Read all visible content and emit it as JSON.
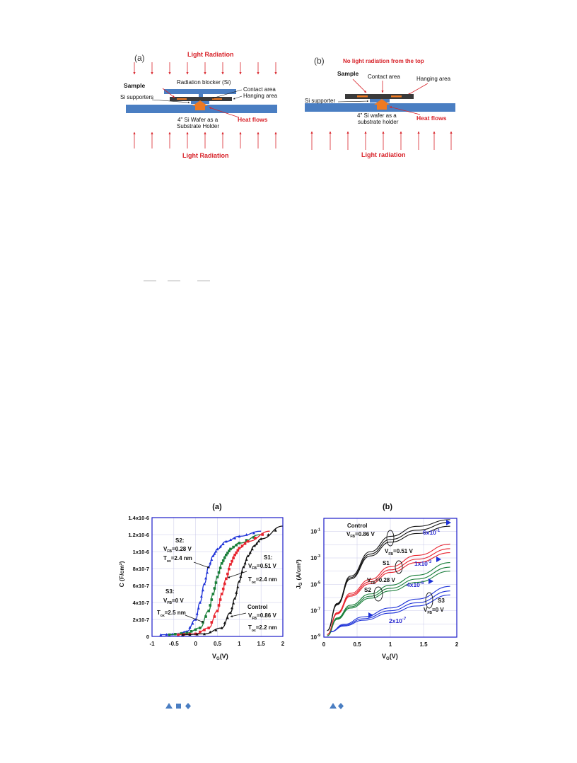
{
  "fig1": {
    "a": {
      "panel": "(a)",
      "light_top": "Light Radiation",
      "light_bottom": "Light Radiation",
      "sample": "Sample",
      "blocker": "Radiation blocker (Si)",
      "contact": "Contact area",
      "hanging": "Hanging area",
      "supporters": "Si supporters",
      "wafer1": "4\" Si Wafer as a",
      "wafer2": "Substrate Holder",
      "heat": "Heat flows"
    },
    "b": {
      "panel": "(b)",
      "no_light": "No light radiation from the top",
      "sample": "Sample",
      "contact": "Contact area",
      "hanging": "Hanging area",
      "supporter": "Si supporter",
      "wafer1": "4\" Si wafer as a",
      "wafer2": "substrate holder",
      "heat": "Heat flows",
      "light_bottom": "Light radiation"
    }
  },
  "colors": {
    "red": "#d8232a",
    "blue_bar": "#4a7ec2",
    "dark": "#3a3a3a",
    "orange": "#ee7a22",
    "plot_frame": "#1c1cc8",
    "black_series": "#111111",
    "red_series": "#e8242f",
    "green_series": "#1a7f3a",
    "blue_series": "#1e32d8",
    "label_blue": "#2a2ad0"
  },
  "chart_data": [
    {
      "type": "line",
      "panel_title": "(a)",
      "xlabel_main": "V",
      "xlabel_sub": "G",
      "xlabel_end": "(V)",
      "ylabel": "C (F/cm²)",
      "xlim": [
        -1,
        2
      ],
      "ylim": [
        0,
        1.4e-06
      ],
      "x_ticks": [
        "-1",
        "-0.5",
        "0",
        "0.5",
        "1",
        "1.5",
        "2"
      ],
      "y_ticks": [
        "0",
        "2x10-7",
        "4x10-7",
        "6x10-7",
        "8x10-7",
        "1x10-6",
        "1.2x10-6",
        "1.4x10-6"
      ],
      "series": [
        {
          "name": "S2",
          "color": "blue",
          "x": [
            -0.8,
            -0.4,
            -0.2,
            0,
            0.1,
            0.2,
            0.3,
            0.4,
            0.5,
            0.7,
            1.0,
            1.5
          ],
          "y": [
            2e-08,
            3e-08,
            6e-08,
            2e-07,
            4e-07,
            6.2e-07,
            8.2e-07,
            9.5e-07,
            1.03e-06,
            1.12e-06,
            1.18e-06,
            1.24e-06
          ]
        },
        {
          "name": "S3",
          "color": "green",
          "x": [
            -0.6,
            -0.2,
            0.1,
            0.3,
            0.4,
            0.5,
            0.6,
            0.7,
            0.8,
            1.0,
            1.5
          ],
          "y": [
            2e-08,
            4e-08,
            1e-07,
            3e-07,
            5e-07,
            7e-07,
            8.6e-07,
            9.6e-07,
            1.03e-06,
            1.1e-06,
            1.2e-06
          ]
        },
        {
          "name": "S1",
          "color": "red",
          "x": [
            -0.4,
            0,
            0.3,
            0.5,
            0.6,
            0.7,
            0.8,
            0.9,
            1.0,
            1.2,
            1.7
          ],
          "y": [
            2e-08,
            3e-08,
            1e-07,
            3e-07,
            5e-07,
            6.8e-07,
            8.5e-07,
            9.6e-07,
            1.04e-06,
            1.12e-06,
            1.24e-06
          ]
        },
        {
          "name": "Control",
          "color": "black",
          "x": [
            -0.3,
            0.2,
            0.6,
            0.8,
            0.9,
            1.0,
            1.1,
            1.2,
            1.35,
            1.5,
            2.0
          ],
          "y": [
            2e-08,
            3e-08,
            1e-07,
            2.8e-07,
            4.5e-07,
            6.5e-07,
            8.2e-07,
            9.5e-07,
            1.07e-06,
            1.15e-06,
            1.3e-06
          ]
        }
      ],
      "annotations": {
        "s2": [
          "S2:",
          "V",
          "FB",
          "=0.28 V",
          "T",
          "ox",
          "=2.4 nm"
        ],
        "s3": [
          "S3:",
          "V",
          "FB",
          "=0 V",
          "T",
          "ox",
          "=2.5 nm"
        ],
        "s1": [
          "S1:",
          "V",
          "FB",
          "=0.51 V",
          "T",
          "ox",
          "=2.4 nm"
        ],
        "control": [
          "Control",
          "V",
          "FB",
          "=0.86 V",
          "T",
          "ox",
          "=2.2 nm"
        ]
      }
    },
    {
      "type": "line",
      "panel_title": "(b)",
      "xlabel_main": "V",
      "xlabel_sub": "G",
      "xlabel_end": "(V)",
      "ylabel_main": "J",
      "ylabel_sub": "G",
      "ylabel_end": "(A/cm²)",
      "log_y": true,
      "xlim": [
        0,
        2
      ],
      "ylim": [
        1e-09,
        1
      ],
      "x_ticks": [
        "0",
        "0.5",
        "1",
        "1.5",
        "2"
      ],
      "y_ticks_exp": [
        "-1",
        "-3",
        "-5",
        "-7",
        "-9"
      ],
      "series": [
        {
          "name": "Control",
          "color": "black",
          "x": [
            0.05,
            0.2,
            0.4,
            0.7,
            1.0,
            1.4,
            1.9
          ],
          "log10_y": [
            -8.5,
            -6.5,
            -4.5,
            -2.7,
            -1.6,
            -0.9,
            -0.3
          ]
        },
        {
          "name": "S1",
          "color": "red",
          "x": [
            0.05,
            0.2,
            0.4,
            0.7,
            1.0,
            1.4,
            1.9
          ],
          "log10_y": [
            -8.8,
            -7.2,
            -5.8,
            -4.8,
            -3.9,
            -3.1,
            -2.3
          ]
        },
        {
          "name": "S2",
          "color": "green",
          "x": [
            0.05,
            0.2,
            0.4,
            0.7,
            1.0,
            1.4,
            1.9
          ],
          "log10_y": [
            -8.9,
            -7.6,
            -6.7,
            -5.9,
            -5.3,
            -4.6,
            -3.7
          ]
        },
        {
          "name": "S3",
          "color": "blue",
          "x": [
            0.1,
            0.3,
            0.6,
            1.0,
            1.4,
            1.9
          ],
          "log10_y": [
            -8.6,
            -8.1,
            -7.6,
            -7.0,
            -6.4,
            -5.5
          ]
        }
      ],
      "annotations": {
        "control": [
          "Control",
          "V",
          "FB",
          "=0.86 V"
        ],
        "s1": [
          "V",
          "FB",
          "=0.51 V",
          "S1"
        ],
        "s2": [
          "V",
          "FB",
          "=0.28 V",
          "S2"
        ],
        "s3": [
          "S3",
          "V",
          "FB",
          "=0 V"
        ],
        "values": [
          {
            "mant": "6x10",
            "exp": "-1"
          },
          {
            "mant": "1x10",
            "exp": "-3"
          },
          {
            "mant": "4x10",
            "exp": "-5"
          },
          {
            "mant": "2x10",
            "exp": "-7"
          }
        ]
      }
    }
  ]
}
